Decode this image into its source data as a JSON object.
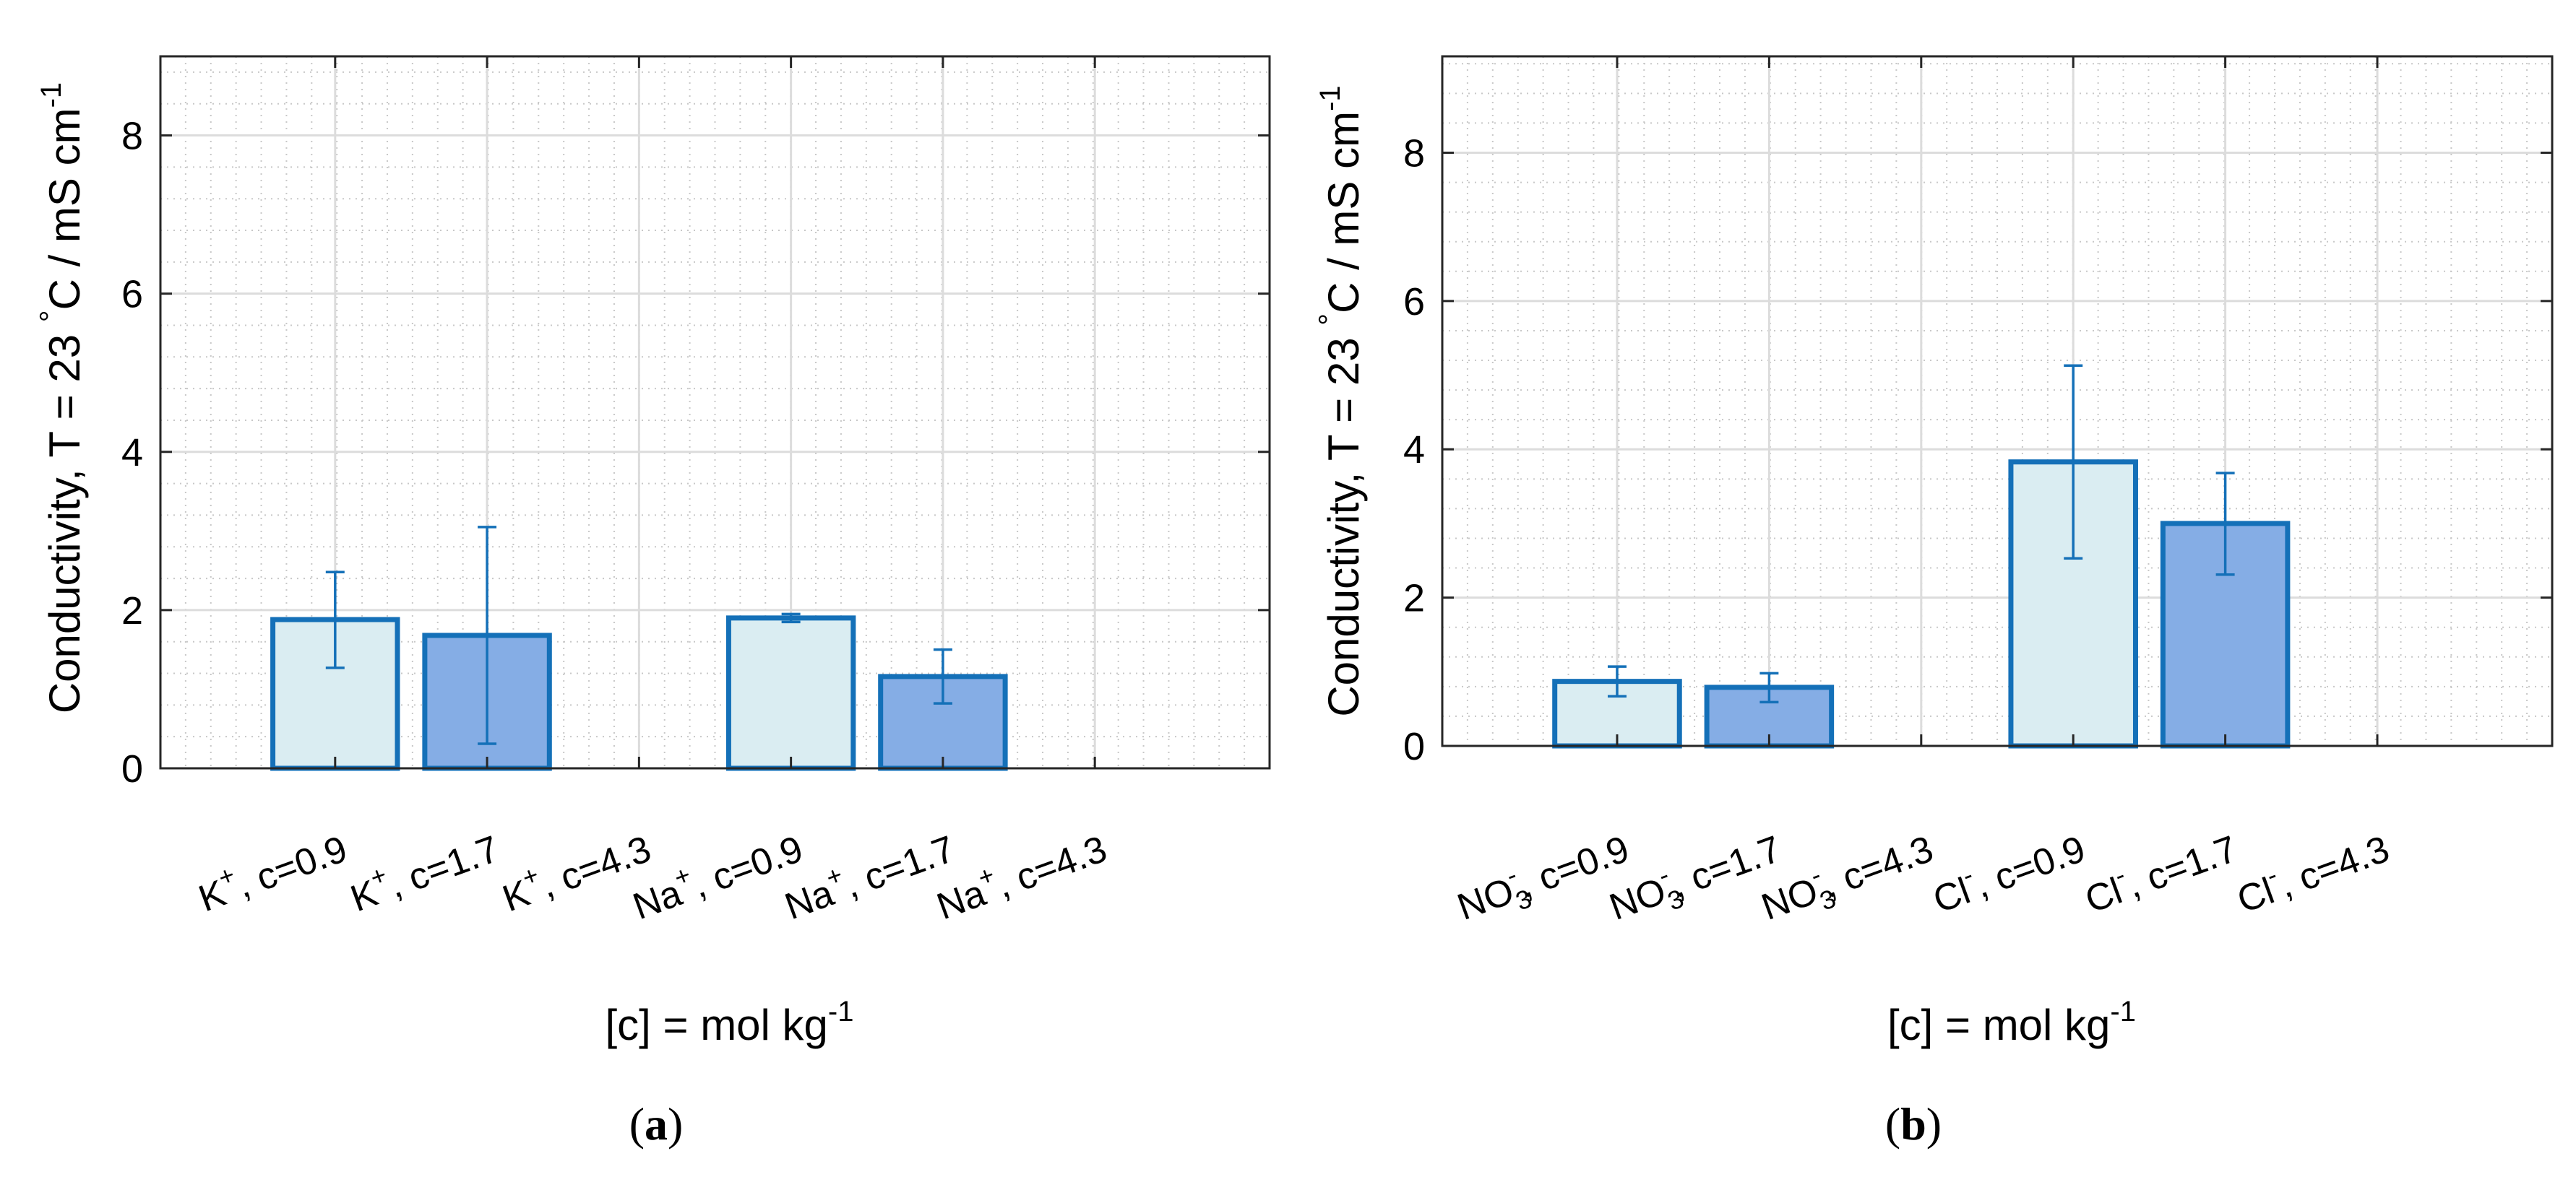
{
  "chart_data": [
    {
      "type": "bar",
      "panel_label": "a",
      "categories": [
        {
          "ion": "K",
          "charge": "+",
          "conc": ", c=0.9"
        },
        {
          "ion": "K",
          "charge": "+",
          "conc": ", c=1.7"
        },
        {
          "ion": "K",
          "charge": "+",
          "conc": ", c=4.3"
        },
        {
          "ion": "Na",
          "charge": "+",
          "conc": ", c=0.9"
        },
        {
          "ion": "Na",
          "charge": "+",
          "conc": ", c=1.7"
        },
        {
          "ion": "Na",
          "charge": "+",
          "conc": ", c=4.3"
        }
      ],
      "values": [
        1.88,
        1.68,
        null,
        1.9,
        1.16,
        null
      ],
      "error_low": [
        1.27,
        0.31,
        null,
        1.85,
        0.82,
        null
      ],
      "error_high": [
        2.48,
        3.05,
        null,
        1.95,
        1.5,
        null
      ],
      "bar_fill": [
        "#daedf2",
        "#85ade5",
        "#daedf2",
        "#daedf2",
        "#85ade5",
        "#daedf2"
      ],
      "ylim": [
        0,
        9
      ],
      "yticks": [
        0,
        2,
        4,
        6,
        8
      ],
      "ylabel_main": "Conductivity, T = 23 ",
      "ylabel_degree": "°",
      "ylabel_unit": "C / mS cm",
      "ylabel_exp": "-1",
      "xlabel_main": "[c] = mol kg",
      "xlabel_exp": "-1"
    },
    {
      "type": "bar",
      "panel_label": "b",
      "categories": [
        {
          "ion": "NO",
          "sub": "3",
          "charge": "-",
          "conc": ", c=0.9"
        },
        {
          "ion": "NO",
          "sub": "3",
          "charge": "-",
          "conc": ", c=1.7"
        },
        {
          "ion": "NO",
          "sub": "3",
          "charge": "-",
          "conc": ", c=4.3"
        },
        {
          "ion": "Cl",
          "charge": "-",
          "conc": ", c=0.9"
        },
        {
          "ion": "Cl",
          "charge": "-",
          "conc": ", c=1.7"
        },
        {
          "ion": "Cl",
          "charge": "-",
          "conc": ", c=4.3"
        }
      ],
      "values": [
        0.87,
        0.79,
        null,
        3.83,
        3.0,
        null
      ],
      "error_low": [
        0.67,
        0.59,
        null,
        2.53,
        2.31,
        null
      ],
      "error_high": [
        1.07,
        0.98,
        null,
        5.13,
        3.68,
        null
      ],
      "bar_fill": [
        "#daedf2",
        "#85ade5",
        "#daedf2",
        "#daedf2",
        "#85ade5",
        "#daedf2"
      ],
      "ylim": [
        0,
        9.3
      ],
      "yticks": [
        0,
        2,
        4,
        6,
        8
      ],
      "ylabel_main": "Conductivity, T = 23 ",
      "ylabel_degree": "°",
      "ylabel_unit": "C / mS cm",
      "ylabel_exp": "-1",
      "xlabel_main": "[c] = mol kg",
      "xlabel_exp": "-1"
    }
  ],
  "colors": {
    "bar_stroke": "#1470b8",
    "error_bar": "#1470b8",
    "grid_major": "#dcdcdc",
    "grid_minor": "#c8c8c8",
    "axis": "#262626"
  }
}
